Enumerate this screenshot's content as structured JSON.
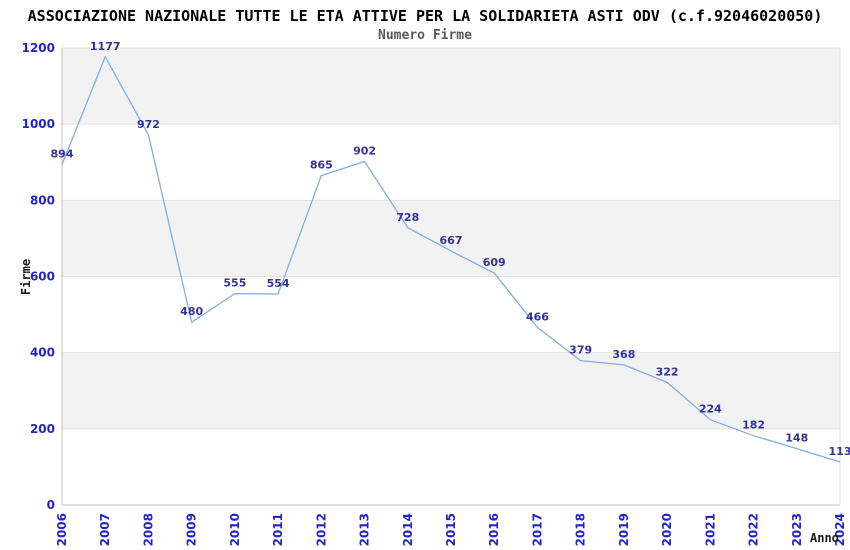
{
  "chart_data": {
    "type": "line",
    "title": "ASSOCIAZIONE NAZIONALE TUTTE LE ETA ATTIVE PER LA SOLIDARIETA ASTI ODV (c.f.92046020050)",
    "subtitle": "Numero Firme",
    "xlabel": "Anno",
    "ylabel": "Firme",
    "categories": [
      "2006",
      "2007",
      "2008",
      "2009",
      "2010",
      "2011",
      "2012",
      "2013",
      "2014",
      "2015",
      "2016",
      "2017",
      "2018",
      "2019",
      "2020",
      "2021",
      "2022",
      "2023",
      "2024"
    ],
    "values": [
      894,
      1177,
      972,
      480,
      555,
      554,
      865,
      902,
      728,
      667,
      609,
      466,
      379,
      368,
      322,
      224,
      182,
      148,
      113
    ],
    "ylim": [
      0,
      1200
    ],
    "ytick_step": 200,
    "grid": "horizontal-bands-alternating",
    "legend": "none",
    "point_labels_shown": true,
    "colors": {
      "line": "#7fafe3",
      "point_label": "#333399",
      "tick_label": "#2323cc",
      "band_fill": "#f2f2f2",
      "gridline": "#e2e2e2",
      "axis_line": "#c0c0c0",
      "title": "#000000",
      "subtitle": "#5a5a5a",
      "axis_title": "#1a1a1a"
    }
  }
}
